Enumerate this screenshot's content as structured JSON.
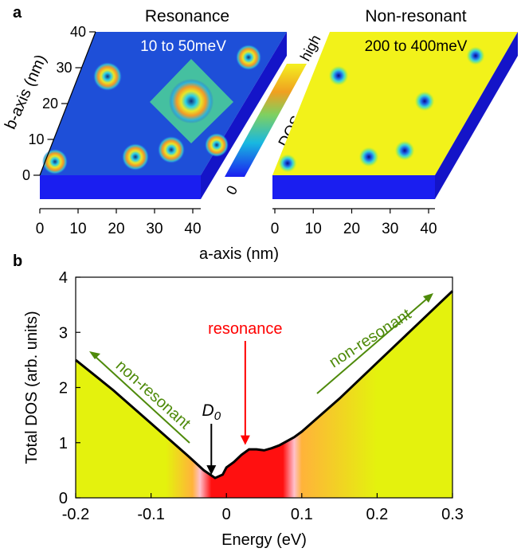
{
  "panel_a": {
    "label": "a",
    "left_map": {
      "title": "Resonance",
      "energy_range": "10 to 50meV",
      "fill": "#1e4fd8",
      "slab_color": "#1a1ef0"
    },
    "right_map": {
      "title": "Non-resonant",
      "energy_range": "200 to 400meV",
      "fill": "#f2f21a",
      "slab_color": "#1a1ef0"
    },
    "colorbar": {
      "label": "DOS",
      "low_label": "0",
      "high_label": "high"
    },
    "b_axis": {
      "label": "b-axis (nm)",
      "ticks": [
        "0",
        "10",
        "20",
        "30",
        "40"
      ]
    },
    "a_axis": {
      "label": "a-axis (nm)",
      "ticks": [
        "0",
        "10",
        "20",
        "30",
        "40"
      ]
    }
  },
  "panel_b": {
    "label": "b",
    "chart_data": {
      "type": "line",
      "title": "",
      "xlabel": "Energy (eV)",
      "ylabel": "Total DOS (arb. units)",
      "xlim": [
        -0.2,
        0.3
      ],
      "ylim": [
        0,
        4
      ],
      "xticks": [
        "-0.2",
        "-0.1",
        "0",
        "0.1",
        "0.2",
        "0.3"
      ],
      "xtick_values": [
        -0.2,
        -0.1,
        0,
        0.1,
        0.2,
        0.3
      ],
      "yticks": [
        "0",
        "1",
        "2",
        "3",
        "4"
      ],
      "ytick_values": [
        0,
        1,
        2,
        3,
        4
      ],
      "series": [
        {
          "name": "Total DOS",
          "x": [
            -0.2,
            -0.15,
            -0.1,
            -0.05,
            -0.03,
            -0.015,
            -0.005,
            0.0,
            0.01,
            0.02,
            0.03,
            0.04,
            0.05,
            0.06,
            0.07,
            0.09,
            0.1,
            0.15,
            0.2,
            0.25,
            0.3
          ],
          "y": [
            2.5,
            1.95,
            1.35,
            0.75,
            0.5,
            0.36,
            0.42,
            0.55,
            0.65,
            0.78,
            0.88,
            0.88,
            0.86,
            0.9,
            0.95,
            1.1,
            1.2,
            1.8,
            2.45,
            3.1,
            3.75
          ]
        }
      ],
      "annotations": {
        "resonance": {
          "text": "resonance",
          "x": 0.025,
          "y": 0.9,
          "color": "#ff0000"
        },
        "d0": {
          "text": "D",
          "subscript": "0",
          "x": -0.02,
          "y": 0.36,
          "color": "#000000"
        },
        "non_resonant_left": {
          "text": "non-resonant",
          "color": "#4e8a0a"
        },
        "non_resonant_right": {
          "text": "non-resonant",
          "color": "#4e8a0a"
        }
      },
      "fill_colors": {
        "outer": "#e4f20d",
        "mid": "#ffb33a",
        "edge": "#ffc0cb",
        "resonance": "#ff1010"
      }
    }
  }
}
